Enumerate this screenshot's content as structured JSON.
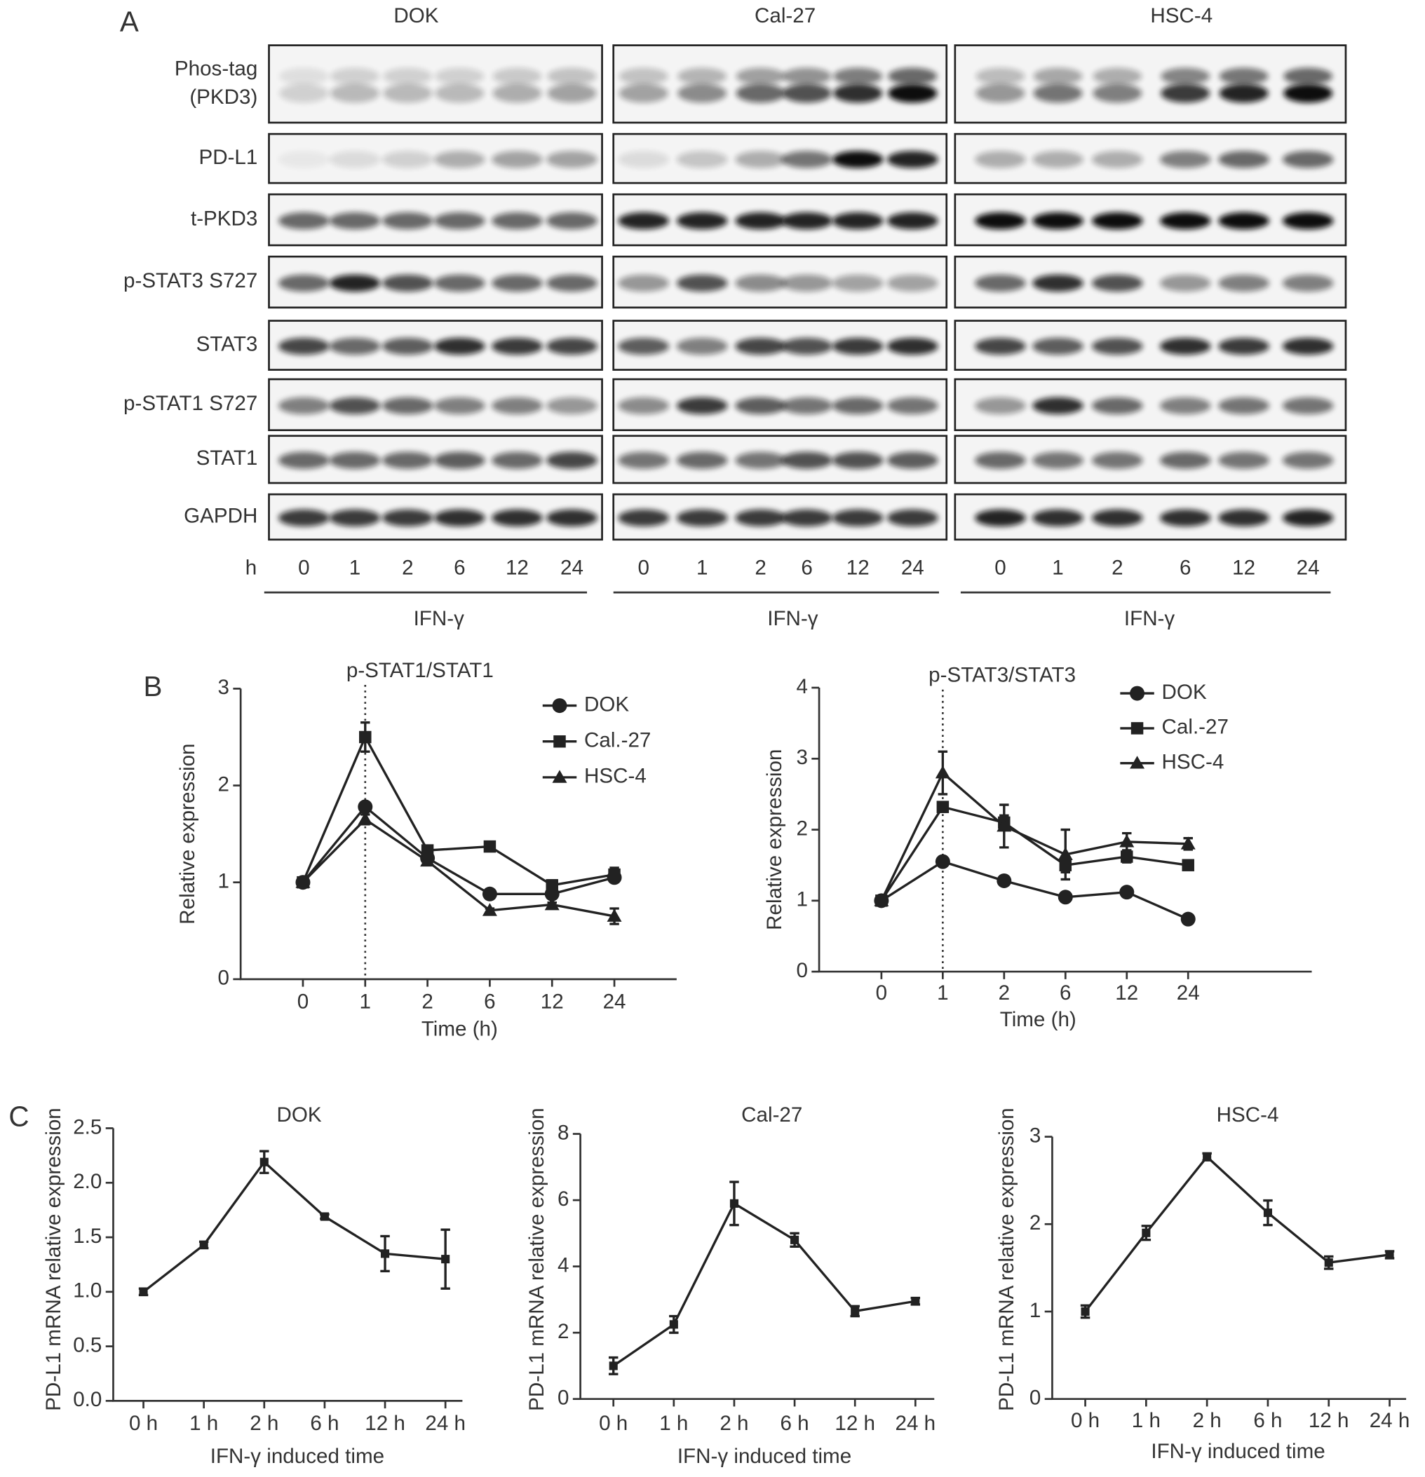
{
  "panel_labels": [
    "A",
    "B",
    "C"
  ],
  "blot": {
    "cell_lines": [
      "DOK",
      "Cal-27",
      "HSC-4"
    ],
    "row_labels": [
      [
        "Phos-tag",
        "(PKD3)"
      ],
      [
        "PD-L1"
      ],
      [
        "t-PKD3"
      ],
      [
        "p-STAT3 S727"
      ],
      [
        "STAT3"
      ],
      [
        "p-STAT1 S727"
      ],
      [
        "STAT1"
      ],
      [
        "GAPDH"
      ]
    ],
    "time_unit": "h",
    "lanes": [
      "0",
      "1",
      "2",
      "6",
      "12",
      "24"
    ],
    "treatment": "IFN-γ"
  },
  "chart_data": [
    {
      "type": "line",
      "title": "p-STAT1/STAT1",
      "y_label": "Relative expression",
      "x_label": "Time (h)",
      "categories": [
        "0",
        "1",
        "2",
        "6",
        "12",
        "24"
      ],
      "vline": "1",
      "ylim": [
        0,
        3
      ],
      "yticks": [
        0,
        1,
        2,
        3
      ],
      "series": [
        {
          "name": "DOK",
          "color": "#222222",
          "marker": "circle",
          "values": [
            1,
            1.78,
            1.25,
            0.88,
            0.88,
            1.05
          ],
          "errors": [
            0,
            0.03,
            0.03,
            0.02,
            0.02,
            0.03
          ]
        },
        {
          "name": "Cal.-27",
          "color": "#222222",
          "marker": "square",
          "values": [
            1,
            2.5,
            1.33,
            1.37,
            0.97,
            1.08
          ],
          "errors": [
            0,
            0.15,
            0.05,
            0.03,
            0.05,
            0.07
          ]
        },
        {
          "name": "HSC-4",
          "color": "#222222",
          "marker": "triangle",
          "values": [
            1,
            1.65,
            1.22,
            0.71,
            0.77,
            0.65
          ],
          "errors": [
            0,
            0.05,
            0.03,
            0.02,
            0.02,
            0.08
          ]
        }
      ]
    },
    {
      "type": "line",
      "title": "p-STAT3/STAT3",
      "y_label": "Relative expression",
      "x_label": "Time (h)",
      "categories": [
        "0",
        "1",
        "2",
        "6",
        "12",
        "24"
      ],
      "vline": "1",
      "ylim": [
        0,
        4
      ],
      "yticks": [
        0,
        1,
        2,
        3,
        4
      ],
      "series": [
        {
          "name": "DOK",
          "color": "#222222",
          "marker": "circle",
          "values": [
            1,
            1.55,
            1.28,
            1.05,
            1.12,
            0.74
          ],
          "errors": [
            0,
            0.02,
            0.02,
            0.02,
            0.02,
            0.02
          ]
        },
        {
          "name": "Cal.-27",
          "color": "#222222",
          "marker": "square",
          "values": [
            1,
            2.32,
            2.1,
            1.5,
            1.62,
            1.5
          ],
          "errors": [
            0,
            0.05,
            0.1,
            0.1,
            0.08,
            0.05
          ]
        },
        {
          "name": "HSC-4",
          "color": "#222222",
          "marker": "triangle",
          "values": [
            1,
            2.8,
            2.05,
            1.65,
            1.83,
            1.8
          ],
          "errors": [
            0,
            0.3,
            0.3,
            0.35,
            0.12,
            0.08
          ]
        }
      ]
    },
    {
      "type": "line",
      "title": "DOK",
      "y_label": "PD-L1 mRNA relative expression",
      "x_label": "IFN-γ induced time",
      "categories": [
        "0 h",
        "1 h",
        "2 h",
        "6 h",
        "12 h",
        "24 h"
      ],
      "ylim": [
        0,
        2.5
      ],
      "yticks": [
        {
          "value": 0,
          "label": "0.0"
        },
        0.5,
        {
          "value": 1,
          "label": "1.0"
        },
        1.5,
        {
          "value": 2,
          "label": "2.0"
        },
        2.5
      ],
      "color": "#222222",
      "marker": "square",
      "values": [
        1.0,
        1.43,
        2.19,
        1.69,
        1.35,
        1.3
      ],
      "errors": [
        0.03,
        0.03,
        0.1,
        0.02,
        0.16,
        0.27
      ]
    },
    {
      "type": "line",
      "title": "Cal-27",
      "y_label": "PD-L1 mRNA relative expression",
      "x_label": "IFN-γ induced time",
      "categories": [
        "0 h",
        "1 h",
        "2 h",
        "6 h",
        "12 h",
        "24 h"
      ],
      "ylim": [
        0,
        8
      ],
      "yticks": [
        0,
        2,
        4,
        6,
        8
      ],
      "color": "#222222",
      "marker": "square",
      "values": [
        1.0,
        2.25,
        5.9,
        4.8,
        2.65,
        2.95
      ],
      "errors": [
        0.25,
        0.25,
        0.65,
        0.2,
        0.15,
        0.1
      ]
    },
    {
      "type": "line",
      "title": "HSC-4",
      "y_label": "PD-L1 mRNA relative expression",
      "x_label": "IFN-γ induced time",
      "categories": [
        "0 h",
        "1 h",
        "2 h",
        "6 h",
        "12 h",
        "24 h"
      ],
      "ylim": [
        0,
        3
      ],
      "yticks": [
        0,
        1,
        2,
        3
      ],
      "color": "#222222",
      "marker": "square",
      "values": [
        1.0,
        1.9,
        2.77,
        2.13,
        1.56,
        1.65
      ],
      "errors": [
        0.07,
        0.08,
        0.04,
        0.14,
        0.07,
        0.04
      ]
    }
  ]
}
